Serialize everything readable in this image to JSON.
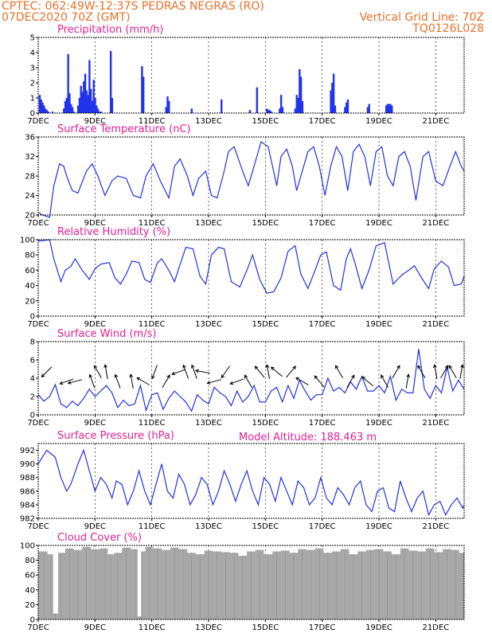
{
  "header": {
    "line1_left": "CPTEC:  062:49W-12:37S  PEDRAS NEGRAS (RO)",
    "line2_left": "07DEC2020 70Z (GMT)",
    "line2_right": "Vertical Grid Line: 70Z",
    "line3_right": "TQ0126L028",
    "model_altitude": "Model Altitude: 188.463  m"
  },
  "colors": {
    "header": "#e8702a",
    "title": "#e0208f",
    "series": "#2233dd",
    "cloud": "#a8a8a8",
    "precip_bar": "#2233ee"
  },
  "x_axis_labels": [
    "7DEC",
    "9DEC",
    "11DEC",
    "13DEC",
    "15DEC",
    "17DEC",
    "19DEC",
    "21DEC"
  ],
  "chart_data": [
    {
      "type": "bar",
      "title": "Precipitation (mm/h)",
      "ylim": [
        0,
        5
      ],
      "yticks": [
        0,
        1,
        2,
        3,
        4,
        5
      ],
      "x_unit": "day",
      "xlim": [
        0,
        15
      ],
      "x": [
        0.05,
        0.1,
        0.15,
        0.2,
        0.25,
        0.3,
        0.35,
        0.5,
        0.9,
        0.95,
        1.0,
        1.05,
        1.1,
        1.15,
        1.2,
        1.25,
        1.4,
        1.45,
        1.5,
        1.55,
        1.6,
        1.65,
        1.7,
        1.75,
        1.8,
        1.85,
        1.9,
        1.95,
        2.0,
        2.05,
        2.1,
        2.15,
        2.2,
        2.55,
        2.6,
        3.65,
        3.7,
        4.5,
        4.55,
        4.6,
        5.4,
        6.45,
        7.45,
        7.7,
        8.05,
        8.1,
        8.15,
        8.2,
        8.5,
        8.55,
        8.6,
        9.05,
        9.1,
        9.15,
        9.2,
        9.25,
        9.3,
        10.3,
        10.35,
        10.4,
        10.45,
        10.8,
        10.85,
        10.9,
        11.6,
        11.65,
        12.25,
        12.3,
        12.35,
        12.4,
        12.45
      ],
      "values": [
        1.2,
        0.9,
        0.7,
        0.5,
        0.3,
        0.2,
        0.1,
        0.1,
        0.3,
        0.8,
        1.0,
        3.9,
        1.3,
        0.6,
        0.4,
        0.1,
        0.5,
        1.0,
        1.8,
        1.4,
        2.1,
        2.6,
        1.5,
        1.2,
        3.5,
        1.6,
        0.8,
        2.2,
        1.0,
        0.5,
        0.3,
        0.1,
        0.1,
        4.1,
        1.0,
        3.1,
        2.4,
        0.4,
        1.1,
        0.8,
        0.3,
        0.9,
        0.2,
        1.7,
        0.3,
        0.2,
        0.2,
        0.1,
        0.3,
        1.2,
        0.4,
        0.3,
        1.2,
        1.0,
        2.9,
        2.4,
        0.8,
        1.5,
        2.0,
        2.6,
        0.5,
        0.4,
        0.7,
        0.9,
        0.4,
        0.6,
        0.5,
        0.6,
        0.6,
        0.6,
        0.5
      ]
    },
    {
      "type": "line",
      "title": "Surface Temperature (nC)",
      "ylim": [
        20,
        36
      ],
      "yticks": [
        20,
        24,
        28,
        32,
        36
      ],
      "x_unit": "day",
      "xlim": [
        0,
        15
      ],
      "x": [
        0,
        0.15,
        0.4,
        0.55,
        0.75,
        0.9,
        1.0,
        1.2,
        1.4,
        1.7,
        1.9,
        2.1,
        2.35,
        2.6,
        2.8,
        3.1,
        3.35,
        3.6,
        3.8,
        4.05,
        4.3,
        4.6,
        4.8,
        5.0,
        5.25,
        5.45,
        5.65,
        5.9,
        6.1,
        6.3,
        6.55,
        6.7,
        6.9,
        7.2,
        7.4,
        7.6,
        7.85,
        8.1,
        8.25,
        8.4,
        8.55,
        8.75,
        8.95,
        9.1,
        9.3,
        9.5,
        9.7,
        9.9,
        10.1,
        10.3,
        10.5,
        10.7,
        10.9,
        11.1,
        11.3,
        11.5,
        11.7,
        11.9,
        12.1,
        12.3,
        12.5,
        12.7,
        12.9,
        13.1,
        13.3,
        13.55,
        13.75,
        14.0,
        14.25,
        14.5,
        14.7,
        14.9,
        15.0
      ],
      "values": [
        20.5,
        20,
        19.5,
        26,
        30.5,
        30,
        28,
        25,
        24.5,
        29,
        30.5,
        28,
        24,
        27,
        28,
        27.5,
        24,
        23.5,
        28,
        30.5,
        27,
        23.5,
        30,
        31.5,
        28,
        24,
        27.5,
        29,
        24,
        23.5,
        29,
        33,
        34,
        29,
        26,
        30,
        35,
        34,
        30,
        26,
        32,
        33.5,
        30,
        25,
        29,
        33,
        34,
        30,
        24,
        30,
        34,
        32,
        25,
        33,
        34.5,
        32,
        26,
        33,
        34,
        28,
        26,
        32,
        33,
        30,
        23,
        32,
        33,
        27,
        26,
        30,
        33,
        30,
        29
      ]
    },
    {
      "type": "line",
      "title": "Relative Humidity (%)",
      "ylim": [
        0,
        100
      ],
      "yticks": [
        0,
        20,
        40,
        60,
        80,
        100
      ],
      "x_unit": "day",
      "xlim": [
        0,
        15
      ],
      "x": [
        0,
        0.4,
        0.55,
        0.8,
        0.95,
        1.15,
        1.3,
        1.55,
        1.8,
        2.0,
        2.2,
        2.5,
        2.7,
        2.9,
        3.1,
        3.3,
        3.55,
        3.75,
        3.95,
        4.2,
        4.35,
        4.6,
        4.8,
        5.0,
        5.2,
        5.45,
        5.7,
        5.9,
        6.1,
        6.35,
        6.55,
        6.8,
        7.1,
        7.35,
        7.55,
        7.8,
        8.05,
        8.3,
        8.55,
        8.8,
        9.05,
        9.25,
        9.5,
        9.75,
        9.95,
        10.15,
        10.4,
        10.65,
        10.85,
        11.0,
        11.15,
        11.4,
        11.65,
        11.9,
        12.2,
        12.5,
        12.7,
        12.85,
        13.05,
        13.25,
        13.5,
        13.75,
        13.95,
        14.2,
        14.45,
        14.65,
        14.9,
        15.0
      ],
      "values": [
        98,
        100,
        75,
        45,
        60,
        65,
        75,
        60,
        48,
        62,
        68,
        70,
        50,
        42,
        55,
        72,
        70,
        48,
        44,
        70,
        75,
        60,
        45,
        68,
        90,
        88,
        52,
        42,
        80,
        90,
        88,
        45,
        38,
        60,
        80,
        48,
        30,
        32,
        50,
        85,
        92,
        55,
        36,
        60,
        80,
        84,
        40,
        34,
        75,
        88,
        70,
        36,
        60,
        92,
        96,
        42,
        50,
        55,
        60,
        66,
        50,
        36,
        62,
        72,
        64,
        40,
        42,
        52
      ]
    },
    {
      "type": "line",
      "title": "Surface Wind (m/s)",
      "ylim": [
        0,
        8
      ],
      "yticks": [
        0,
        2,
        4,
        6,
        8
      ],
      "x_unit": "day",
      "xlim": [
        0,
        15
      ],
      "x": [
        0,
        0.2,
        0.4,
        0.6,
        0.8,
        1.0,
        1.2,
        1.4,
        1.6,
        1.8,
        2.0,
        2.2,
        2.4,
        2.6,
        2.8,
        3.0,
        3.2,
        3.4,
        3.6,
        3.8,
        4.0,
        4.2,
        4.4,
        4.6,
        4.8,
        5.0,
        5.2,
        5.4,
        5.6,
        5.8,
        6.0,
        6.2,
        6.4,
        6.6,
        6.8,
        7.0,
        7.2,
        7.4,
        7.6,
        7.8,
        8.0,
        8.2,
        8.4,
        8.6,
        8.8,
        9.0,
        9.2,
        9.4,
        9.6,
        9.8,
        10.0,
        10.2,
        10.4,
        10.6,
        10.8,
        11.0,
        11.2,
        11.4,
        11.6,
        11.8,
        12.0,
        12.2,
        12.4,
        12.6,
        12.8,
        13.0,
        13.2,
        13.4,
        13.6,
        13.8,
        14.0,
        14.2,
        14.4,
        14.6,
        14.8,
        15.0
      ],
      "values": [
        2.2,
        1.5,
        2.0,
        3.3,
        1.2,
        0.8,
        1.5,
        1.0,
        1.8,
        2.8,
        2.0,
        2.6,
        3.2,
        2.4,
        0.8,
        1.6,
        1.0,
        1.2,
        3.2,
        0.5,
        2.2,
        2.4,
        0.6,
        1.8,
        2.6,
        2.0,
        1.4,
        0.4,
        2.2,
        1.6,
        1.2,
        3.0,
        2.4,
        2.0,
        1.0,
        2.6,
        1.4,
        2.0,
        3.2,
        1.4,
        1.4,
        2.6,
        3.0,
        1.4,
        3.2,
        1.8,
        3.8,
        2.6,
        1.6,
        2.2,
        2.2,
        4.0,
        2.6,
        3.0,
        2.4,
        3.6,
        2.8,
        4.2,
        2.6,
        2.6,
        3.2,
        2.4,
        4.2,
        1.6,
        2.8,
        2.4,
        2.4,
        7.2,
        2.8,
        1.8,
        3.2,
        2.4,
        5.2,
        2.6,
        3.8,
        2.8
      ]
    },
    {
      "type": "line",
      "title": "Surface Pressure (hPa)",
      "ylim": [
        982,
        993
      ],
      "yticks": [
        982,
        984,
        986,
        988,
        990,
        992
      ],
      "x_unit": "day",
      "xlim": [
        0,
        15
      ],
      "x": [
        0,
        0.3,
        0.6,
        0.8,
        1.0,
        1.15,
        1.4,
        1.6,
        1.8,
        2.0,
        2.2,
        2.4,
        2.6,
        2.75,
        2.95,
        3.15,
        3.35,
        3.55,
        3.75,
        3.95,
        4.15,
        4.35,
        4.55,
        4.75,
        4.95,
        5.15,
        5.35,
        5.55,
        5.75,
        5.95,
        6.15,
        6.35,
        6.55,
        6.75,
        6.95,
        7.15,
        7.35,
        7.55,
        7.75,
        7.95,
        8.15,
        8.35,
        8.55,
        8.75,
        8.95,
        9.15,
        9.35,
        9.55,
        9.75,
        9.95,
        10.15,
        10.35,
        10.55,
        10.75,
        10.95,
        11.15,
        11.35,
        11.55,
        11.75,
        11.95,
        12.15,
        12.35,
        12.55,
        12.75,
        12.95,
        13.15,
        13.35,
        13.55,
        13.75,
        13.95,
        14.15,
        14.35,
        14.55,
        14.75,
        14.95,
        15.0
      ],
      "values": [
        990,
        992,
        991,
        988,
        986,
        987,
        990,
        992,
        989,
        986,
        988,
        987,
        985,
        987.5,
        987,
        984,
        986,
        989,
        986,
        984,
        987,
        990,
        986,
        985,
        988.5,
        987,
        984,
        985.5,
        988,
        987,
        984,
        986,
        989,
        987,
        984.5,
        987,
        989,
        986,
        984,
        988,
        987,
        984.5,
        988,
        986,
        984,
        987.5,
        986.5,
        984,
        985,
        988,
        985,
        984,
        986.5,
        985.5,
        984,
        986.5,
        987.5,
        984,
        983,
        986,
        986.5,
        983.5,
        983,
        987.5,
        985,
        983,
        985,
        986,
        982.5,
        984,
        984.5,
        982.5,
        984,
        985,
        983.5,
        984
      ]
    },
    {
      "type": "bar",
      "title": "Cloud Cover (%)",
      "ylim": [
        0,
        100
      ],
      "yticks": [
        0,
        20,
        40,
        60,
        80,
        100
      ],
      "x_unit": "day",
      "xlim": [
        0,
        15
      ],
      "x": [
        0.2,
        0.45,
        0.6,
        0.8,
        1.1,
        1.4,
        1.7,
        2.0,
        2.35,
        2.55,
        2.8,
        3.1,
        3.4,
        3.6,
        3.65,
        3.9,
        4.2,
        4.5,
        4.8,
        5.1,
        5.4,
        5.7,
        6.0,
        6.3,
        6.6,
        6.9,
        7.2,
        7.5,
        7.8,
        8.1,
        8.4,
        8.7,
        9.0,
        9.3,
        9.6,
        9.9,
        10.2,
        10.5,
        10.8,
        11.1,
        11.4,
        11.7,
        12.0,
        12.3,
        12.6,
        12.9,
        13.2,
        13.5,
        13.8,
        14.1,
        14.4,
        14.7,
        14.95
      ],
      "values": [
        92,
        88,
        8,
        90,
        96,
        94,
        98,
        95,
        96,
        88,
        90,
        97,
        95,
        4,
        92,
        98,
        96,
        94,
        97,
        95,
        90,
        88,
        93,
        92,
        91,
        90,
        86,
        92,
        94,
        88,
        92,
        93,
        90,
        95,
        94,
        96,
        90,
        92,
        95,
        88,
        92,
        94,
        95,
        92,
        88,
        96,
        93,
        92,
        96,
        91,
        95,
        94,
        90
      ]
    }
  ],
  "wind_arrows": {
    "x": [
      0.3,
      1.0,
      1.3,
      1.9,
      2.1,
      2.4,
      2.8,
      3.3,
      3.7,
      4.1,
      4.5,
      4.95,
      5.2,
      5.5,
      5.8,
      6.2,
      6.6,
      7.0,
      7.4,
      7.8,
      8.1,
      8.4,
      8.9,
      9.3,
      9.9,
      10.6,
      11.0,
      11.6,
      12.2,
      12.6,
      13.0,
      13.5,
      14.0,
      14.3,
      14.6,
      14.9
    ],
    "angle_deg": [
      225,
      200,
      195,
      110,
      120,
      100,
      110,
      100,
      150,
      250,
      60,
      200,
      110,
      110,
      170,
      195,
      235,
      200,
      120,
      130,
      100,
      140,
      50,
      150,
      130,
      120,
      60,
      140,
      120,
      60,
      80,
      120,
      100,
      60,
      120,
      80
    ]
  }
}
